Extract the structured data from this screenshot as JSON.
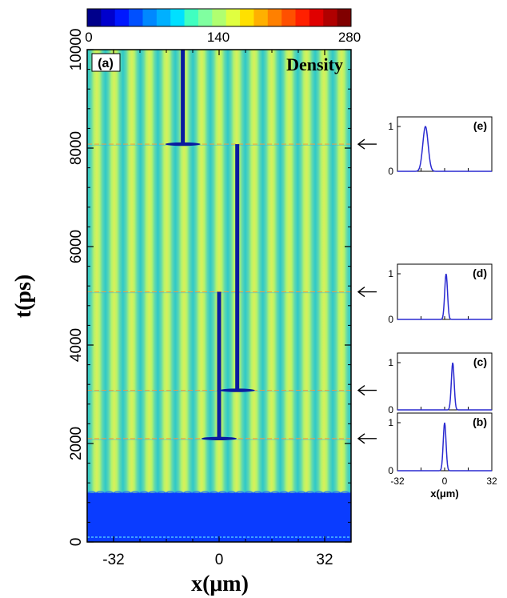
{
  "chart_data": [
    {
      "type": "heatmap",
      "panel": "(a)",
      "title": "Density",
      "xlabel": "x(μm)",
      "ylabel": "t(ps)",
      "xlim": [
        -40,
        40
      ],
      "ylim": [
        0,
        10000
      ],
      "x_ticks": [
        "-32",
        "0",
        "32"
      ],
      "x_tick_values": [
        -32,
        0,
        32
      ],
      "y_ticks": [
        "0",
        "2000",
        "4000",
        "6000",
        "8000",
        "10000"
      ],
      "y_tick_values": [
        0,
        2000,
        4000,
        6000,
        8000,
        10000
      ],
      "colorbar": {
        "min": 0,
        "max": 280,
        "tick_labels": [
          "0",
          "140",
          "280"
        ],
        "tick_values": [
          0,
          140,
          280
        ],
        "colors": [
          "#00008b",
          "#0000cd",
          "#0018ff",
          "#0050ff",
          "#0088ff",
          "#00b0ff",
          "#00e0ff",
          "#40ffc0",
          "#80ffa0",
          "#b0ff70",
          "#e0ff40",
          "#ffe000",
          "#ffb000",
          "#ff8000",
          "#ff5000",
          "#ff2000",
          "#e00000",
          "#b00000",
          "#800000"
        ]
      },
      "background_stripe_period_um": 5.3,
      "background_colors": [
        "#b6f36a",
        "#2ec8c8"
      ],
      "initial_band": {
        "t_range": [
          0,
          1000
        ],
        "color": "#0a3cff"
      },
      "events": [
        {
          "t": 2100,
          "arrow": true
        },
        {
          "t": 3080,
          "arrow": true
        },
        {
          "t": 5080,
          "arrow": true
        },
        {
          "t": 8080,
          "arrow": true
        }
      ],
      "soliton_track": [
        {
          "x": 0,
          "t_start": 2100,
          "t_end": 5080
        },
        {
          "x": 5.5,
          "t_start": 3080,
          "t_end": 8080
        },
        {
          "x": -11,
          "t_start": 8080,
          "t_end": 10000
        }
      ],
      "soliton_color": "#0a1aa0"
    },
    {
      "type": "line",
      "panel": "(e)",
      "xlim": [
        -32,
        32
      ],
      "ylim": [
        0,
        1
      ],
      "y_ticks": [
        "0",
        "1"
      ],
      "peak_x": -13,
      "width": 3.6,
      "color": "#2a2ad0"
    },
    {
      "type": "line",
      "panel": "(d)",
      "xlim": [
        -32,
        32
      ],
      "ylim": [
        0,
        1
      ],
      "y_ticks": [
        "0",
        "1"
      ],
      "peak_x": 1,
      "width": 1.9,
      "color": "#2a2ad0"
    },
    {
      "type": "line",
      "panel": "(c)",
      "xlim": [
        -32,
        32
      ],
      "ylim": [
        0,
        1
      ],
      "y_ticks": [
        "0",
        "1"
      ],
      "peak_x": 5.5,
      "width": 1.9,
      "color": "#2a2ad0"
    },
    {
      "type": "line",
      "panel": "(b)",
      "xlim": [
        -32,
        32
      ],
      "ylim": [
        0,
        1
      ],
      "x_ticks": [
        "-32",
        "0",
        "32"
      ],
      "y_ticks": [
        "0",
        "1"
      ],
      "xlabel": "x(μm)",
      "peak_x": 0,
      "width": 1.9,
      "color": "#2a2ad0"
    }
  ]
}
